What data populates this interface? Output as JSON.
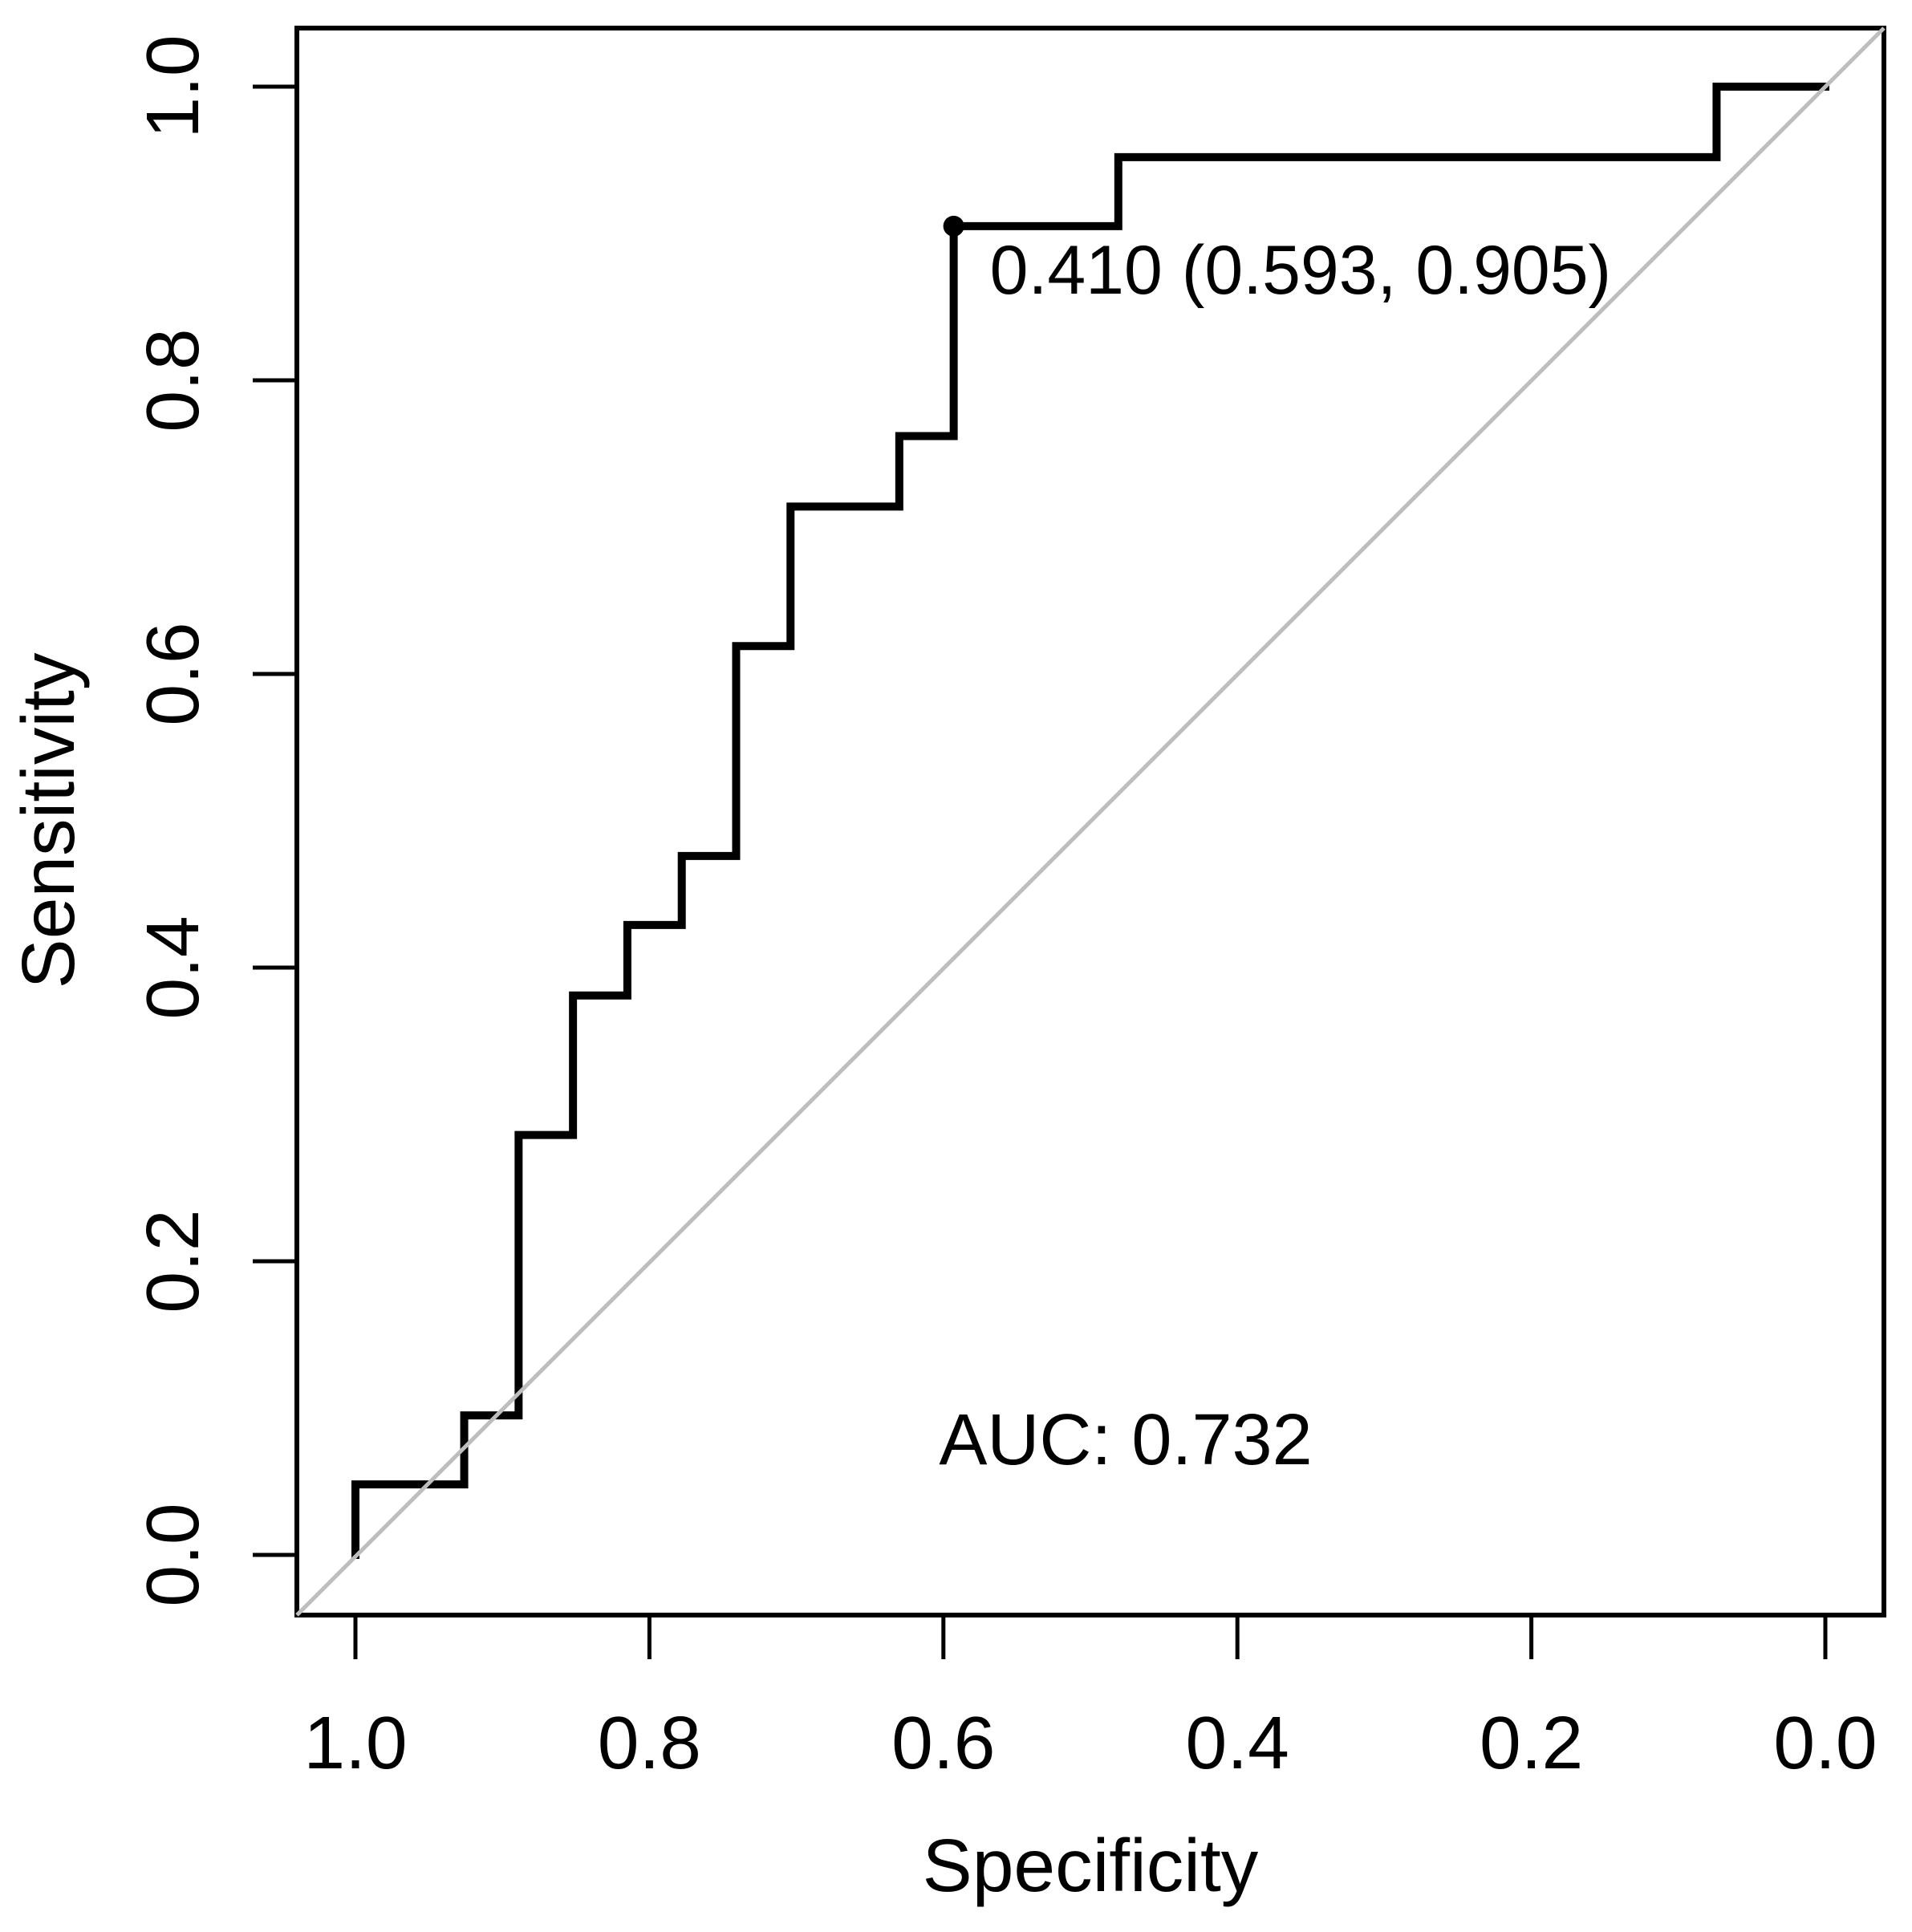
{
  "figure": {
    "background_color": "#ffffff",
    "axis_color": "#000000",
    "curve_color": "#000000",
    "diagonal_color": "#bdbdbd",
    "marker_color": "#000000"
  },
  "chart_data": {
    "type": "line",
    "subtype": "roc_step_curve",
    "title": "",
    "xlabel": "Specificity",
    "ylabel": "Sensitivity",
    "grid": false,
    "legend": "none",
    "x_axis": {
      "reversed": true,
      "range": [
        1.0,
        0.0
      ],
      "ticks": [
        {
          "label": "1.0",
          "value": 1.0
        },
        {
          "label": "0.8",
          "value": 0.8
        },
        {
          "label": "0.6",
          "value": 0.6
        },
        {
          "label": "0.4",
          "value": 0.4
        },
        {
          "label": "0.2",
          "value": 0.2
        },
        {
          "label": "0.0",
          "value": 0.0
        }
      ]
    },
    "y_axis": {
      "range": [
        0.0,
        1.0
      ],
      "ticks": [
        {
          "label": "0.0",
          "value": 0.0
        },
        {
          "label": "0.2",
          "value": 0.2
        },
        {
          "label": "0.4",
          "value": 0.4
        },
        {
          "label": "0.6",
          "value": 0.6
        },
        {
          "label": "0.8",
          "value": 0.8
        },
        {
          "label": "1.0",
          "value": 1.0
        }
      ]
    },
    "series": [
      {
        "name": "ROC curve",
        "points_format": [
          "specificity",
          "sensitivity"
        ],
        "points": [
          [
            1.0,
            0.0
          ],
          [
            1.0,
            0.048
          ],
          [
            0.926,
            0.048
          ],
          [
            0.926,
            0.095
          ],
          [
            0.889,
            0.095
          ],
          [
            0.889,
            0.286
          ],
          [
            0.852,
            0.286
          ],
          [
            0.852,
            0.381
          ],
          [
            0.815,
            0.381
          ],
          [
            0.815,
            0.429
          ],
          [
            0.778,
            0.429
          ],
          [
            0.778,
            0.476
          ],
          [
            0.741,
            0.476
          ],
          [
            0.741,
            0.619
          ],
          [
            0.704,
            0.619
          ],
          [
            0.704,
            0.714
          ],
          [
            0.63,
            0.714
          ],
          [
            0.63,
            0.762
          ],
          [
            0.593,
            0.762
          ],
          [
            0.593,
            0.905
          ],
          [
            0.481,
            0.905
          ],
          [
            0.481,
            0.952
          ],
          [
            0.074,
            0.952
          ],
          [
            0.074,
            1.0
          ],
          [
            0.0,
            1.0
          ]
        ]
      }
    ],
    "reference_line": {
      "from": [
        1.0,
        0.0
      ],
      "to": [
        0.0,
        1.0
      ]
    },
    "marked_point": {
      "label": "0.410 (0.593, 0.905)",
      "threshold": 0.41,
      "specificity": 0.593,
      "sensitivity": 0.905
    },
    "auc": 0.732,
    "auc_label": "AUC: 0.732"
  }
}
